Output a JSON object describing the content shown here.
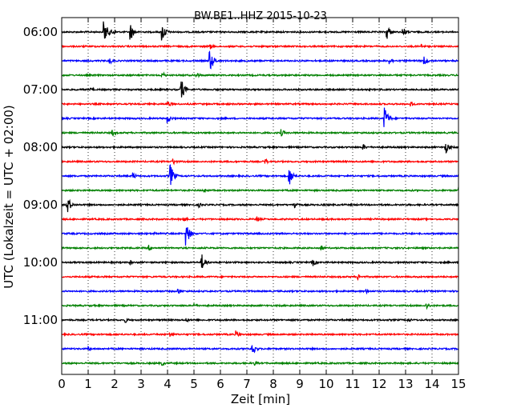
{
  "chart_data": {
    "type": "line",
    "title": "BW.BE1..HHZ 2015-10-23",
    "xlabel": "Zeit  [min]",
    "ylabel": "UTC (Lokalzeit = UTC + 02:00)",
    "xlim": [
      0,
      15
    ],
    "x_ticks": [
      "0",
      "1",
      "2",
      "3",
      "4",
      "5",
      "6",
      "7",
      "8",
      "9",
      "10",
      "11",
      "12",
      "13",
      "14",
      "15"
    ],
    "y_ticks": [
      "06:00",
      "07:00",
      "08:00",
      "09:00",
      "10:00",
      "11:00"
    ],
    "trace_interval_min": 15,
    "grid": "vertical dotted",
    "colors": [
      "#000000",
      "#ff0000",
      "#0000ff",
      "#008000"
    ],
    "traces": [
      {
        "start": "06:00",
        "events": [
          [
            1.6,
            1.0
          ],
          [
            1.9,
            0.3
          ],
          [
            2.6,
            0.7
          ],
          [
            3.8,
            0.8
          ],
          [
            12.3,
            0.6
          ],
          [
            12.9,
            0.4
          ]
        ]
      },
      {
        "start": "06:15",
        "events": [
          [
            5.6,
            0.25
          ],
          [
            13.6,
            0.2
          ]
        ]
      },
      {
        "start": "06:30",
        "events": [
          [
            1.8,
            0.3
          ],
          [
            5.6,
            0.9
          ],
          [
            12.4,
            0.3
          ],
          [
            13.7,
            0.4
          ]
        ]
      },
      {
        "start": "06:45",
        "events": [
          [
            3.8,
            0.3
          ],
          [
            5.1,
            0.25
          ]
        ]
      },
      {
        "start": "07:00",
        "events": [
          [
            4.5,
            1.0
          ],
          [
            1.1,
            0.2
          ]
        ]
      },
      {
        "start": "07:15",
        "events": [
          [
            4.0,
            0.3
          ],
          [
            13.2,
            0.25
          ]
        ]
      },
      {
        "start": "07:30",
        "events": [
          [
            4.0,
            0.4
          ],
          [
            12.2,
            1.0
          ]
        ]
      },
      {
        "start": "07:45",
        "events": [
          [
            1.9,
            0.3
          ],
          [
            8.3,
            0.3
          ]
        ]
      },
      {
        "start": "08:00",
        "events": [
          [
            11.4,
            0.25
          ],
          [
            14.5,
            0.6
          ]
        ]
      },
      {
        "start": "08:15",
        "events": [
          [
            4.2,
            0.3
          ],
          [
            7.7,
            0.25
          ]
        ]
      },
      {
        "start": "08:30",
        "events": [
          [
            4.1,
            1.0
          ],
          [
            8.6,
            0.8
          ],
          [
            2.7,
            0.3
          ]
        ]
      },
      {
        "start": "08:45",
        "events": [
          [
            5.4,
            0.2
          ],
          [
            15.0,
            0.3
          ]
        ]
      },
      {
        "start": "09:00",
        "events": [
          [
            0.2,
            0.8
          ],
          [
            8.8,
            0.35
          ],
          [
            5.2,
            0.2
          ]
        ]
      },
      {
        "start": "09:15",
        "events": [
          [
            4.6,
            0.25
          ],
          [
            7.4,
            0.25
          ]
        ]
      },
      {
        "start": "09:30",
        "events": [
          [
            4.7,
            1.0
          ],
          [
            3.5,
            0.2
          ]
        ]
      },
      {
        "start": "09:45",
        "events": [
          [
            3.3,
            0.25
          ],
          [
            9.8,
            0.25
          ]
        ]
      },
      {
        "start": "10:00",
        "events": [
          [
            5.3,
            0.7
          ],
          [
            2.6,
            0.2
          ],
          [
            9.5,
            0.3
          ]
        ]
      },
      {
        "start": "10:15",
        "events": [
          [
            11.2,
            0.25
          ]
        ]
      },
      {
        "start": "10:30",
        "events": [
          [
            4.4,
            0.25
          ],
          [
            11.5,
            0.2
          ]
        ]
      },
      {
        "start": "10:45",
        "events": [
          [
            5.0,
            0.2
          ],
          [
            13.8,
            0.3
          ]
        ]
      },
      {
        "start": "11:00",
        "events": [
          [
            2.4,
            0.25
          ],
          [
            4.7,
            0.2
          ],
          [
            13.1,
            0.2
          ]
        ]
      },
      {
        "start": "11:15",
        "events": [
          [
            4.1,
            0.25
          ],
          [
            6.6,
            0.3
          ]
        ]
      },
      {
        "start": "11:30",
        "events": [
          [
            7.2,
            0.6
          ],
          [
            1.0,
            0.2
          ]
        ]
      },
      {
        "start": "11:45",
        "events": [
          [
            3.8,
            0.2
          ],
          [
            7.3,
            0.2
          ]
        ]
      }
    ]
  }
}
